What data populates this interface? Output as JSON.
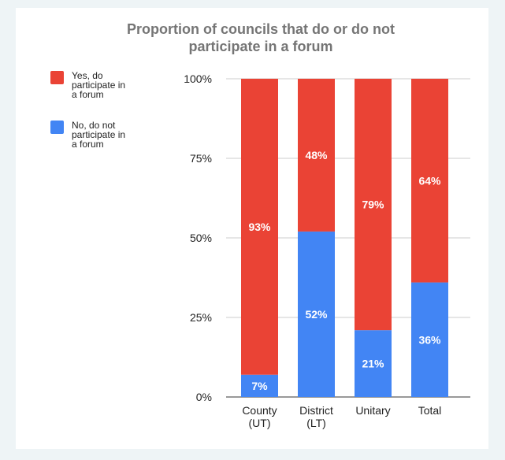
{
  "chart_data": {
    "type": "bar",
    "stacked": true,
    "title_line1": "Proportion of councils that do or do not",
    "title_line2": "participate in a forum",
    "categories": [
      [
        "County",
        "(UT)"
      ],
      [
        "District",
        "(LT)"
      ],
      [
        "Unitary"
      ],
      [
        "Total"
      ]
    ],
    "series": [
      {
        "name_lines": [
          "No, do not",
          "participate in",
          "a forum"
        ],
        "color": "#4285f4",
        "values": [
          7,
          52,
          21,
          36
        ],
        "labels": [
          "7%",
          "52%",
          "21%",
          "36%"
        ]
      },
      {
        "name_lines": [
          "Yes, do",
          "participate in",
          "a forum"
        ],
        "color": "#ea4335",
        "values": [
          93,
          48,
          79,
          64
        ],
        "labels": [
          "93%",
          "48%",
          "79%",
          "64%"
        ]
      }
    ],
    "ylim": [
      0,
      100
    ],
    "yticks": [
      0,
      25,
      50,
      75,
      100
    ],
    "ytick_labels": [
      "0%",
      "25%",
      "50%",
      "75%",
      "100%"
    ],
    "grid": true,
    "legend_position": "top-left",
    "legend_order": [
      1,
      0
    ]
  }
}
